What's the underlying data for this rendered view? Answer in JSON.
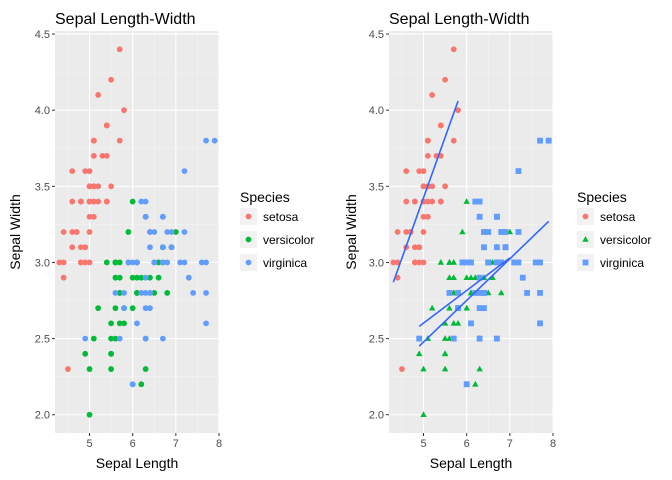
{
  "colors": {
    "setosa": "#F8766D",
    "versicolor": "#00BA38",
    "virginica": "#619CFF",
    "fit": "#3366FF"
  },
  "chart_data": [
    {
      "type": "scatter",
      "title": "Sepal Length-Width",
      "xlabel": "Sepal Length",
      "ylabel": "Sepal Width",
      "xlim": [
        4.2,
        8.0
      ],
      "ylim": [
        1.88,
        4.52
      ],
      "x_ticks": [
        5,
        6,
        7,
        8
      ],
      "y_ticks": [
        2.0,
        2.5,
        3.0,
        3.5,
        4.0,
        4.5
      ],
      "x_tick_labels": [
        "5",
        "6",
        "7",
        "8"
      ],
      "y_tick_labels": [
        "2.0",
        "2.5",
        "3.0",
        "3.5",
        "4.0",
        "4.5"
      ],
      "grid": true,
      "legend": {
        "title": "Species",
        "placement": "right",
        "entries": [
          "setosa",
          "versicolor",
          "virginica"
        ]
      },
      "shapes": [
        "circle",
        "circle",
        "circle"
      ],
      "fit_lines": false,
      "series": [
        {
          "name": "setosa",
          "x": [
            5.1,
            4.9,
            4.7,
            4.6,
            5.0,
            5.4,
            4.6,
            5.0,
            4.4,
            4.9,
            5.4,
            4.8,
            4.8,
            4.3,
            5.8,
            5.7,
            5.4,
            5.1,
            5.7,
            5.1,
            5.4,
            5.1,
            4.6,
            5.1,
            4.8,
            5.0,
            5.0,
            5.2,
            5.2,
            4.7,
            4.8,
            5.4,
            5.2,
            5.5,
            4.9,
            5.0,
            5.5,
            4.9,
            4.4,
            5.1,
            5.0,
            4.5,
            4.4,
            5.0,
            5.1,
            4.8,
            5.1,
            4.6,
            5.3,
            5.0
          ],
          "y": [
            3.5,
            3.0,
            3.2,
            3.1,
            3.6,
            3.9,
            3.4,
            3.4,
            2.9,
            3.1,
            3.7,
            3.4,
            3.0,
            3.0,
            4.0,
            4.4,
            3.9,
            3.5,
            3.8,
            3.8,
            3.4,
            3.7,
            3.6,
            3.3,
            3.4,
            3.0,
            3.4,
            3.5,
            3.4,
            3.2,
            3.1,
            3.4,
            4.1,
            4.2,
            3.1,
            3.2,
            3.5,
            3.6,
            3.0,
            3.4,
            3.5,
            2.3,
            3.2,
            3.5,
            3.8,
            3.0,
            3.8,
            3.2,
            3.7,
            3.3
          ]
        },
        {
          "name": "versicolor",
          "x": [
            7.0,
            6.4,
            6.9,
            5.5,
            6.5,
            5.7,
            6.3,
            4.9,
            6.6,
            5.2,
            5.0,
            5.9,
            6.0,
            6.1,
            5.6,
            6.7,
            5.6,
            5.8,
            6.2,
            5.6,
            5.9,
            6.1,
            6.3,
            6.1,
            6.4,
            6.6,
            6.8,
            6.7,
            6.0,
            5.7,
            5.5,
            5.5,
            5.8,
            6.0,
            5.4,
            6.0,
            6.7,
            6.3,
            5.6,
            5.5,
            5.5,
            6.1,
            5.8,
            5.0,
            5.6,
            5.7,
            5.7,
            6.2,
            5.1,
            5.7
          ],
          "y": [
            3.2,
            3.2,
            3.1,
            2.3,
            2.8,
            2.8,
            3.3,
            2.4,
            2.9,
            2.7,
            2.0,
            3.0,
            2.2,
            2.9,
            2.9,
            3.1,
            3.0,
            2.7,
            2.2,
            2.5,
            3.2,
            2.8,
            2.5,
            2.8,
            2.9,
            3.0,
            2.8,
            3.0,
            2.9,
            2.6,
            2.4,
            2.4,
            2.7,
            2.7,
            3.0,
            3.4,
            3.1,
            2.3,
            3.0,
            2.5,
            2.6,
            3.0,
            2.6,
            2.3,
            2.7,
            3.0,
            2.9,
            2.9,
            2.5,
            2.8
          ]
        },
        {
          "name": "virginica",
          "x": [
            6.3,
            5.8,
            7.1,
            6.3,
            6.5,
            7.6,
            4.9,
            7.3,
            6.7,
            7.2,
            6.5,
            6.4,
            6.8,
            5.7,
            5.8,
            6.4,
            6.5,
            7.7,
            7.7,
            6.0,
            6.9,
            5.6,
            7.7,
            6.3,
            6.7,
            7.2,
            6.2,
            6.1,
            6.4,
            7.2,
            7.4,
            7.9,
            6.4,
            6.3,
            6.1,
            7.7,
            6.3,
            6.4,
            6.0,
            6.9,
            6.7,
            6.9,
            5.8,
            6.8,
            6.7,
            6.7,
            6.3,
            6.5,
            6.2,
            5.9
          ],
          "y": [
            3.3,
            2.7,
            3.0,
            2.9,
            3.0,
            3.0,
            2.5,
            2.9,
            2.5,
            3.6,
            3.2,
            2.7,
            3.0,
            2.5,
            2.8,
            3.2,
            3.0,
            3.8,
            2.6,
            2.2,
            3.2,
            2.8,
            2.8,
            2.7,
            3.3,
            3.2,
            2.8,
            3.0,
            2.8,
            3.0,
            2.8,
            3.8,
            2.8,
            2.8,
            2.6,
            3.0,
            3.4,
            3.1,
            3.0,
            3.1,
            3.1,
            3.1,
            2.7,
            3.2,
            3.3,
            3.0,
            2.5,
            3.0,
            3.4,
            3.0
          ]
        }
      ]
    },
    {
      "type": "scatter",
      "title": "Sepal Length-Width",
      "xlabel": "Sepal Length",
      "ylabel": "Sepal Width",
      "xlim": [
        4.2,
        8.0
      ],
      "ylim": [
        1.88,
        4.52
      ],
      "x_ticks": [
        5,
        6,
        7,
        8
      ],
      "y_ticks": [
        2.0,
        2.5,
        3.0,
        3.5,
        4.0,
        4.5
      ],
      "x_tick_labels": [
        "5",
        "6",
        "7",
        "8"
      ],
      "y_tick_labels": [
        "2.0",
        "2.5",
        "3.0",
        "3.5",
        "4.0",
        "4.5"
      ],
      "grid": true,
      "legend": {
        "title": "Species",
        "placement": "right",
        "entries": [
          "setosa",
          "versicolor",
          "virginica"
        ]
      },
      "shapes": [
        "circle",
        "triangle",
        "square"
      ],
      "fit_lines": true,
      "fits": [
        {
          "series": "setosa",
          "x_range": [
            4.3,
            5.8
          ],
          "y_range": [
            2.87,
            4.06
          ]
        },
        {
          "series": "versicolor",
          "x_range": [
            4.9,
            7.0
          ],
          "y_range": [
            2.58,
            3.03
          ]
        },
        {
          "series": "virginica",
          "x_range": [
            4.9,
            7.9
          ],
          "y_range": [
            2.45,
            3.27
          ]
        }
      ],
      "series": [
        {
          "name": "setosa",
          "x": [
            5.1,
            4.9,
            4.7,
            4.6,
            5.0,
            5.4,
            4.6,
            5.0,
            4.4,
            4.9,
            5.4,
            4.8,
            4.8,
            4.3,
            5.8,
            5.7,
            5.4,
            5.1,
            5.7,
            5.1,
            5.4,
            5.1,
            4.6,
            5.1,
            4.8,
            5.0,
            5.0,
            5.2,
            5.2,
            4.7,
            4.8,
            5.4,
            5.2,
            5.5,
            4.9,
            5.0,
            5.5,
            4.9,
            4.4,
            5.1,
            5.0,
            4.5,
            4.4,
            5.0,
            5.1,
            4.8,
            5.1,
            4.6,
            5.3,
            5.0
          ],
          "y": [
            3.5,
            3.0,
            3.2,
            3.1,
            3.6,
            3.9,
            3.4,
            3.4,
            2.9,
            3.1,
            3.7,
            3.4,
            3.0,
            3.0,
            4.0,
            4.4,
            3.9,
            3.5,
            3.8,
            3.8,
            3.4,
            3.7,
            3.6,
            3.3,
            3.4,
            3.0,
            3.4,
            3.5,
            3.4,
            3.2,
            3.1,
            3.4,
            4.1,
            4.2,
            3.1,
            3.2,
            3.5,
            3.6,
            3.0,
            3.4,
            3.5,
            2.3,
            3.2,
            3.5,
            3.8,
            3.0,
            3.8,
            3.2,
            3.7,
            3.3
          ]
        },
        {
          "name": "versicolor",
          "x": [
            7.0,
            6.4,
            6.9,
            5.5,
            6.5,
            5.7,
            6.3,
            4.9,
            6.6,
            5.2,
            5.0,
            5.9,
            6.0,
            6.1,
            5.6,
            6.7,
            5.6,
            5.8,
            6.2,
            5.6,
            5.9,
            6.1,
            6.3,
            6.1,
            6.4,
            6.6,
            6.8,
            6.7,
            6.0,
            5.7,
            5.5,
            5.5,
            5.8,
            6.0,
            5.4,
            6.0,
            6.7,
            6.3,
            5.6,
            5.5,
            5.5,
            6.1,
            5.8,
            5.0,
            5.6,
            5.7,
            5.7,
            6.2,
            5.1,
            5.7
          ],
          "y": [
            3.2,
            3.2,
            3.1,
            2.3,
            2.8,
            2.8,
            3.3,
            2.4,
            2.9,
            2.7,
            2.0,
            3.0,
            2.2,
            2.9,
            2.9,
            3.1,
            3.0,
            2.7,
            2.2,
            2.5,
            3.2,
            2.8,
            2.5,
            2.8,
            2.9,
            3.0,
            2.8,
            3.0,
            2.9,
            2.6,
            2.4,
            2.4,
            2.7,
            2.7,
            3.0,
            3.4,
            3.1,
            2.3,
            3.0,
            2.5,
            2.6,
            3.0,
            2.6,
            2.3,
            2.7,
            3.0,
            2.9,
            2.9,
            2.5,
            2.8
          ]
        },
        {
          "name": "virginica",
          "x": [
            6.3,
            5.8,
            7.1,
            6.3,
            6.5,
            7.6,
            4.9,
            7.3,
            6.7,
            7.2,
            6.5,
            6.4,
            6.8,
            5.7,
            5.8,
            6.4,
            6.5,
            7.7,
            7.7,
            6.0,
            6.9,
            5.6,
            7.7,
            6.3,
            6.7,
            7.2,
            6.2,
            6.1,
            6.4,
            7.2,
            7.4,
            7.9,
            6.4,
            6.3,
            6.1,
            7.7,
            6.3,
            6.4,
            6.0,
            6.9,
            6.7,
            6.9,
            5.8,
            6.8,
            6.7,
            6.7,
            6.3,
            6.5,
            6.2,
            5.9
          ],
          "y": [
            3.3,
            2.7,
            3.0,
            2.9,
            3.0,
            3.0,
            2.5,
            2.9,
            2.5,
            3.6,
            3.2,
            2.7,
            3.0,
            2.5,
            2.8,
            3.2,
            3.0,
            3.8,
            2.6,
            2.2,
            3.2,
            2.8,
            2.8,
            2.7,
            3.3,
            3.2,
            2.8,
            3.0,
            2.8,
            3.0,
            2.8,
            3.8,
            2.8,
            2.8,
            2.6,
            3.0,
            3.4,
            3.1,
            3.0,
            3.1,
            3.1,
            3.1,
            2.7,
            3.2,
            3.3,
            3.0,
            2.5,
            3.0,
            3.4,
            3.0
          ]
        }
      ]
    }
  ]
}
